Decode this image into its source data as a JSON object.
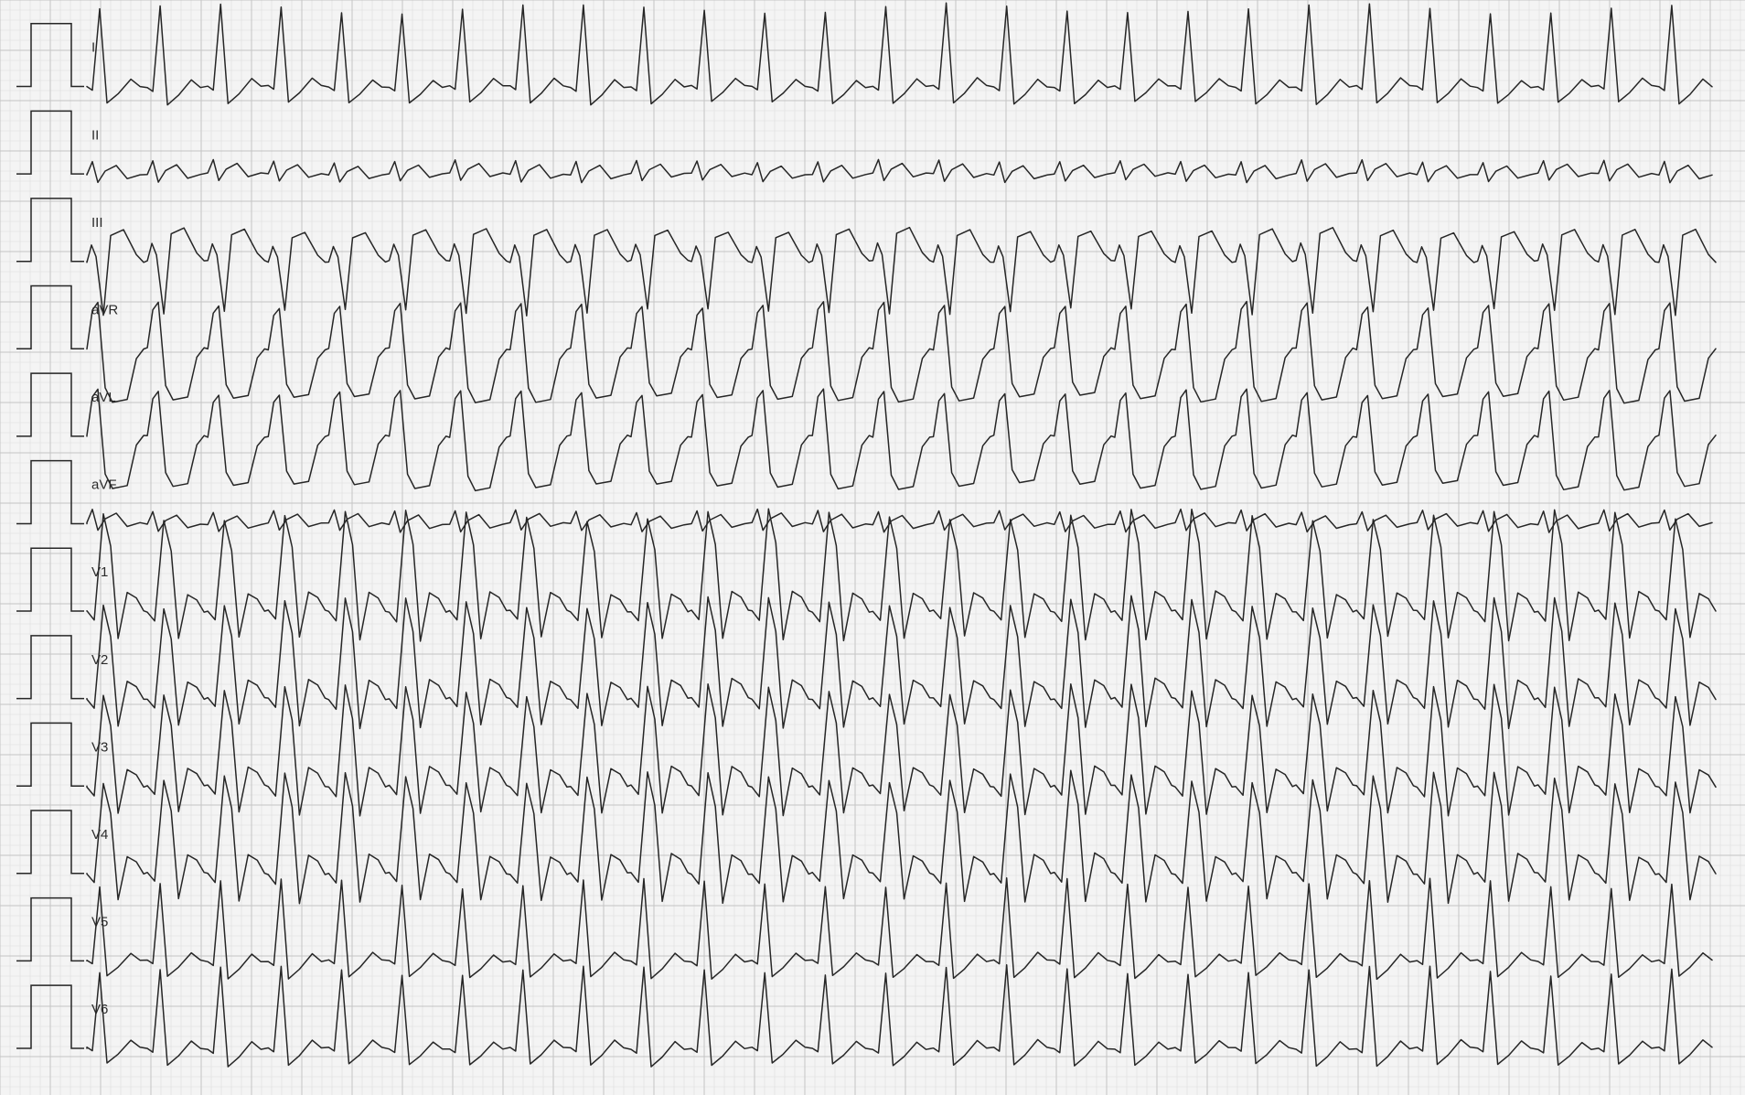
{
  "leads": [
    {
      "label": "I",
      "morph": "upright"
    },
    {
      "label": "II",
      "morph": "small"
    },
    {
      "label": "III",
      "morph": "inverted"
    },
    {
      "label": "aVR",
      "morph": "biphasic"
    },
    {
      "label": "aVL",
      "morph": "biphasic"
    },
    {
      "label": "aVF",
      "morph": "small"
    },
    {
      "label": "V1",
      "morph": "wide-upright"
    },
    {
      "label": "V2",
      "morph": "wide-upright"
    },
    {
      "label": "V3",
      "morph": "wide-upright"
    },
    {
      "label": "V4",
      "morph": "wide-upright"
    },
    {
      "label": "V5",
      "morph": "upright"
    },
    {
      "label": "V6",
      "morph": "upright"
    }
  ],
  "colors": {
    "paper": "#f4f4f4",
    "grid_minor": "#dcdcdc",
    "grid_major": "#c4c4c4",
    "trace": "#262626"
  },
  "beats_per_strip": 27
}
